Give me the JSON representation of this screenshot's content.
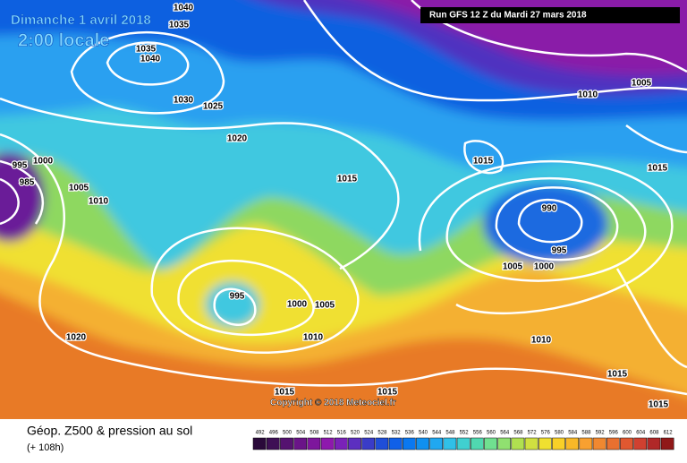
{
  "header": {
    "date": "Dimanche 1 avril 2018",
    "time": "2:00 locale",
    "run": "Run GFS 12 Z du Mardi 27 mars 2018"
  },
  "footer": {
    "title": "Géop. Z500 & pression au sol",
    "lead": "(+ 108h)",
    "copyright": "Copyright © 2018 Meteociel.fr"
  },
  "scale": {
    "values": [
      492,
      496,
      500,
      504,
      508,
      512,
      516,
      520,
      524,
      528,
      532,
      536,
      540,
      544,
      548,
      552,
      556,
      560,
      564,
      568,
      572,
      576,
      580,
      584,
      588,
      592,
      596,
      600,
      604,
      608,
      612
    ],
    "colors": [
      "#2a0a3a",
      "#3e0f55",
      "#551270",
      "#6a1488",
      "#7d169c",
      "#8e18ad",
      "#7a22b8",
      "#5c2fc0",
      "#3a3cc8",
      "#1f4ed8",
      "#1060e8",
      "#0a78f0",
      "#1090f0",
      "#20a8f0",
      "#30c0e8",
      "#40d0d0",
      "#50d8b0",
      "#70e090",
      "#90e070",
      "#b0e050",
      "#d0e040",
      "#f0e030",
      "#f8d028",
      "#f8b828",
      "#f8a030",
      "#f08830",
      "#e87030",
      "#e05830",
      "#d04030",
      "#b02828",
      "#901818"
    ]
  },
  "isobars": [
    1040,
    1035,
    1035,
    1040,
    1030,
    1025,
    1020,
    1015,
    1010,
    1005,
    1015,
    1015,
    990,
    995,
    1005,
    1000,
    995,
    1000,
    1005,
    1010,
    1010,
    1015,
    1020,
    1015,
    1015,
    1015,
    1005,
    1010,
    1000,
    995,
    985
  ]
}
